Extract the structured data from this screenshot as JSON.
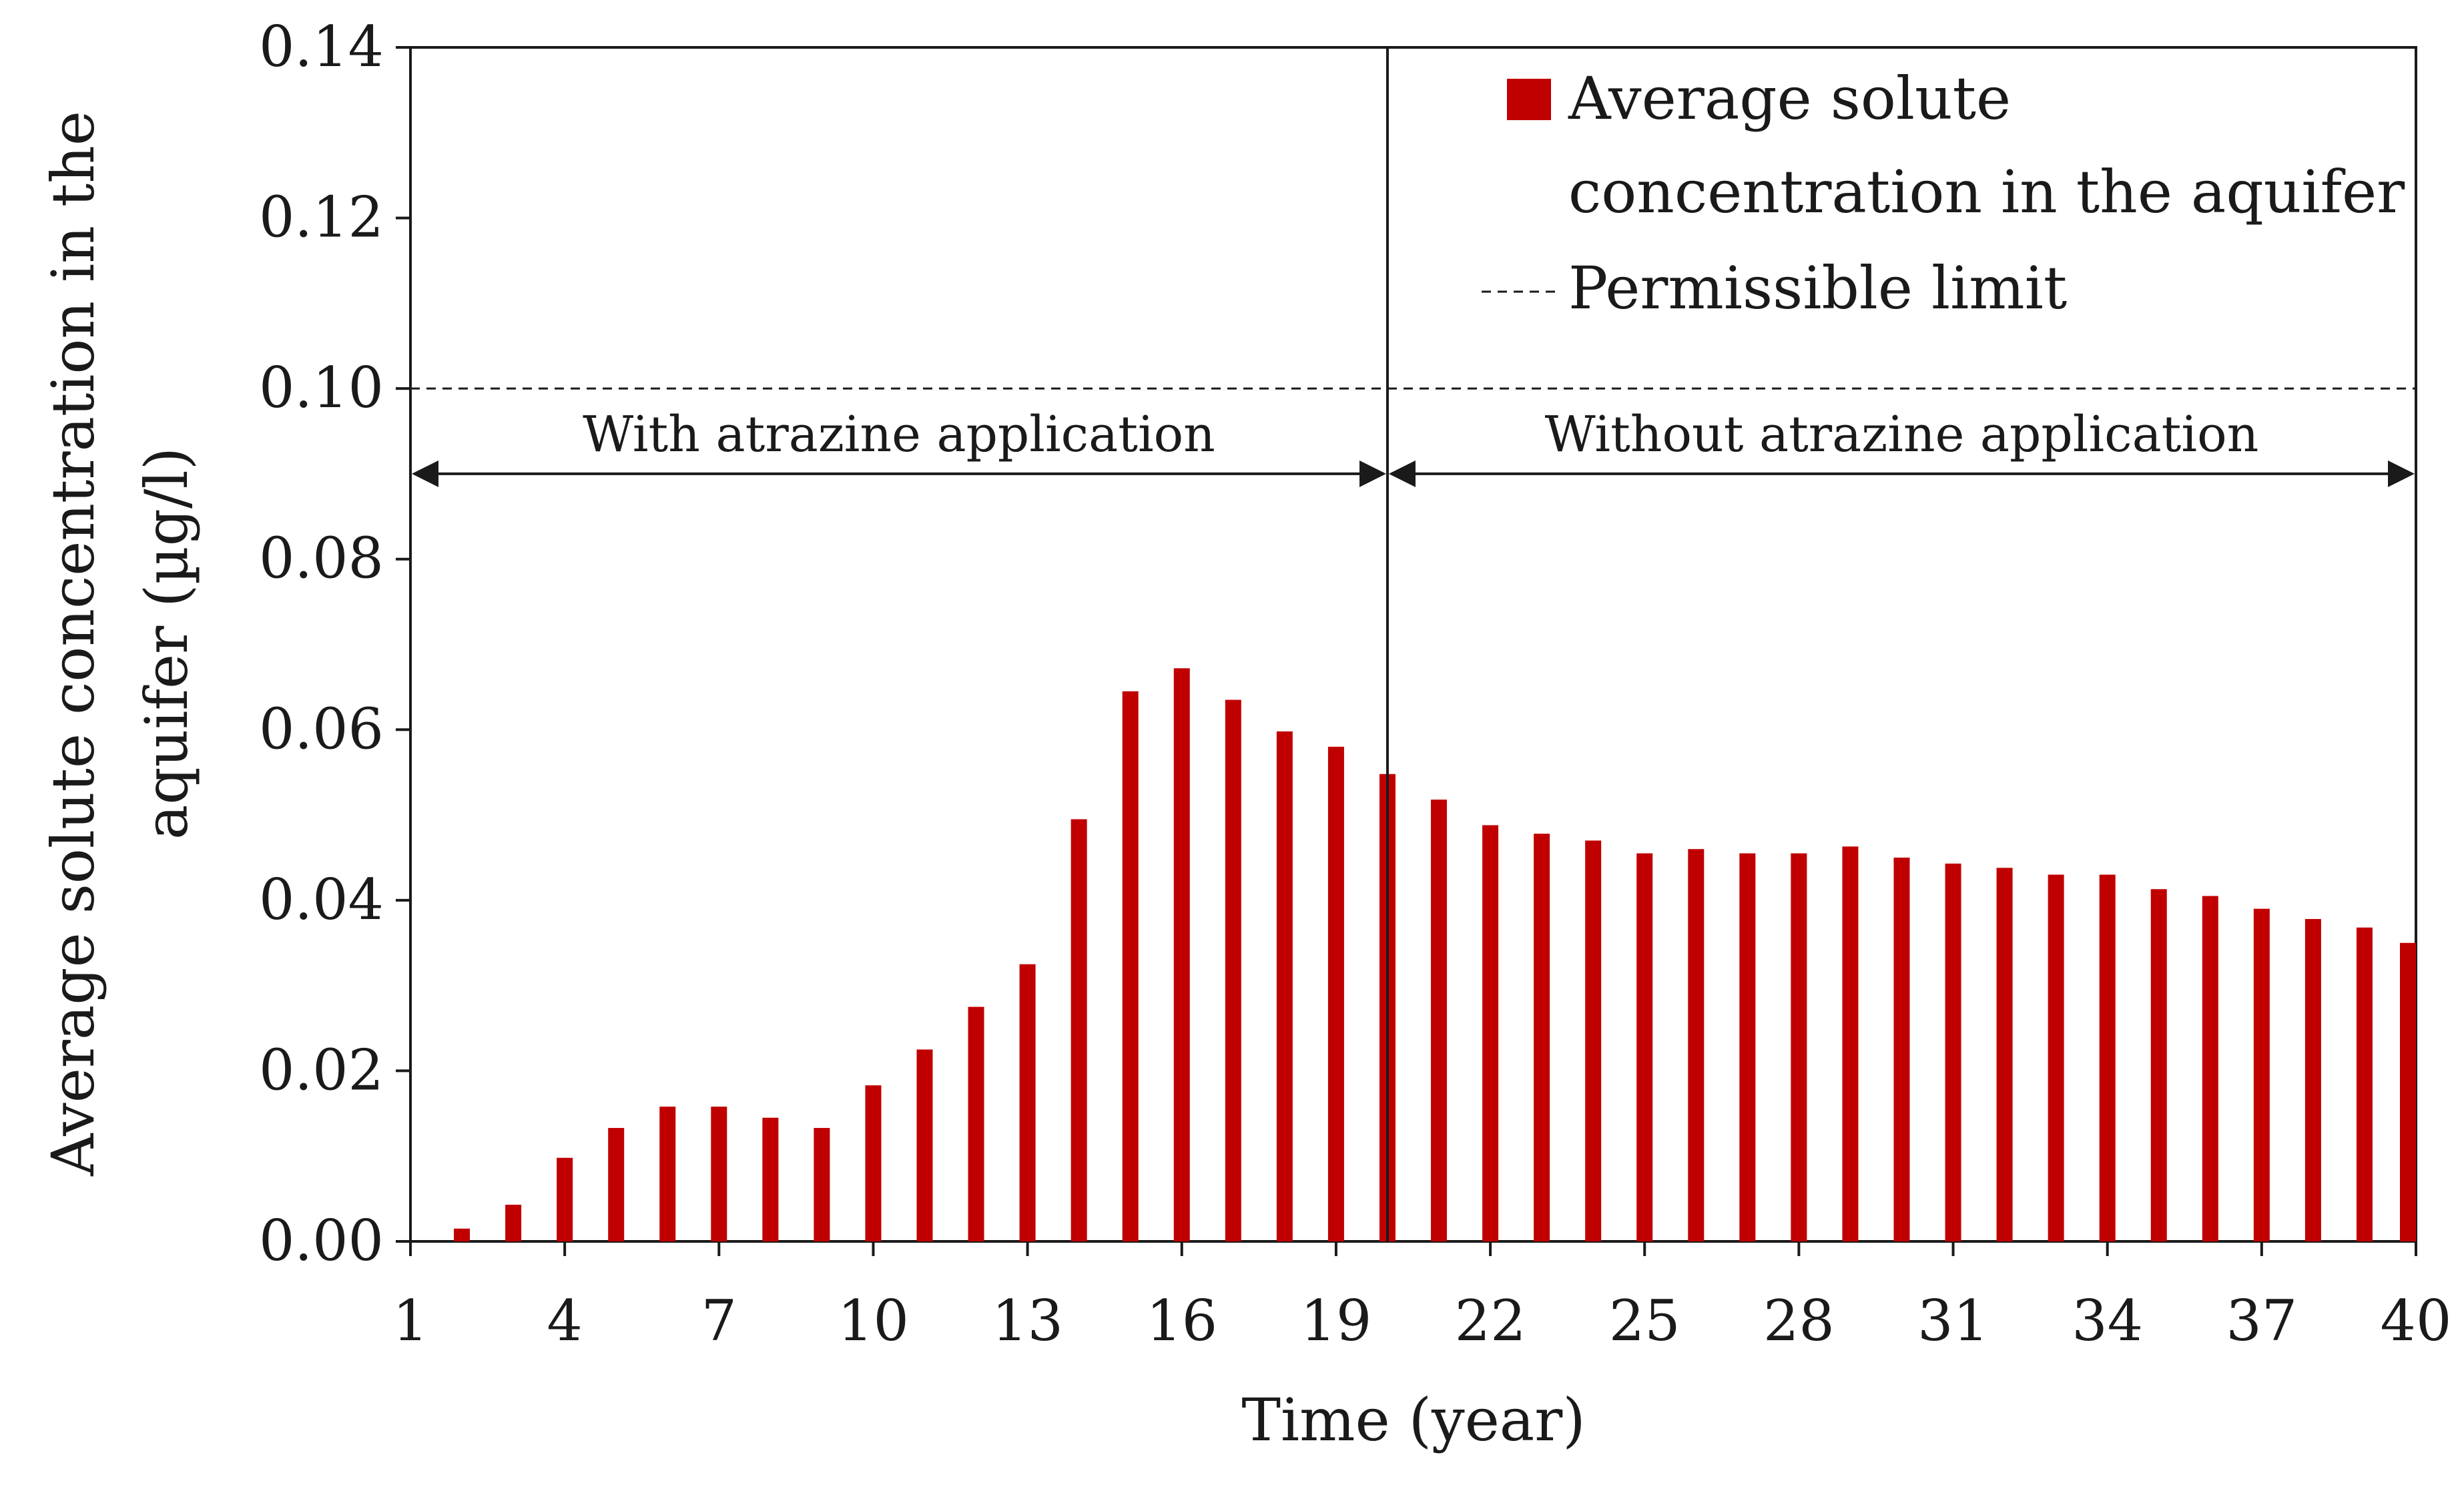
{
  "chart_data": {
    "type": "bar",
    "xlabel": "Time (year)",
    "ylabel_line1": "Average solute concentration in the",
    "ylabel_line2": "aquifer (µg/l)",
    "ylim": [
      0,
      0.14
    ],
    "xlim": [
      1,
      40
    ],
    "yticks": [
      "0.00",
      "0.02",
      "0.04",
      "0.06",
      "0.08",
      "0.10",
      "0.12",
      "0.14"
    ],
    "ytick_values": [
      0,
      0.02,
      0.04,
      0.06,
      0.08,
      0.1,
      0.12,
      0.14
    ],
    "xticks": [
      "1",
      "4",
      "7",
      "10",
      "13",
      "16",
      "19",
      "22",
      "25",
      "28",
      "31",
      "34",
      "37",
      "40"
    ],
    "xtick_values": [
      1,
      4,
      7,
      10,
      13,
      16,
      19,
      22,
      25,
      28,
      31,
      34,
      37,
      40
    ],
    "x": [
      2,
      3,
      4,
      5,
      6,
      7,
      8,
      9,
      10,
      11,
      12,
      13,
      14,
      15,
      16,
      17,
      18,
      19,
      20,
      21,
      22,
      23,
      24,
      25,
      26,
      27,
      28,
      29,
      30,
      31,
      32,
      33,
      34,
      35,
      36,
      37,
      38,
      39,
      40
    ],
    "values": [
      0.0015,
      0.0043,
      0.0098,
      0.0133,
      0.0158,
      0.0158,
      0.0145,
      0.0133,
      0.0183,
      0.0225,
      0.0275,
      0.0325,
      0.0495,
      0.0645,
      0.0672,
      0.0635,
      0.0598,
      0.058,
      0.0548,
      0.0518,
      0.0488,
      0.0478,
      0.047,
      0.0455,
      0.046,
      0.0455,
      0.0455,
      0.0463,
      0.045,
      0.0443,
      0.0438,
      0.043,
      0.043,
      0.0413,
      0.0405,
      0.039,
      0.0378,
      0.0368,
      0.035
    ],
    "bar_color": "#c00000",
    "series_name_line1": "Average solute",
    "series_name_line2": "concentration in the aquifer",
    "limit_value": 0.1,
    "limit_label": "Permissible limit",
    "divider_x": 20,
    "regions": [
      {
        "label": "With atrazine application",
        "from": 1,
        "to": 20
      },
      {
        "label": "Without atrazine application",
        "from": 20,
        "to": 40
      }
    ],
    "arrow_y": 0.09,
    "legend_position": "top-right"
  }
}
